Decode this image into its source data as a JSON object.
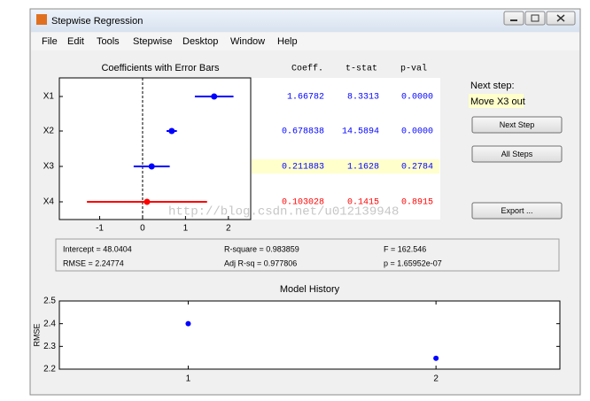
{
  "window": {
    "title": "Stepwise Regression"
  },
  "menu": [
    "File",
    "Edit",
    "Tools",
    "Stepwise",
    "Desktop",
    "Window",
    "Help"
  ],
  "coef_plot": {
    "type": "errorbar",
    "title": "Coefficients with Error Bars",
    "categories": [
      "X1",
      "X2",
      "X3",
      "X4"
    ],
    "values": [
      1.66782,
      0.678838,
      0.211883,
      0.103028
    ],
    "errors": [
      0.45,
      0.12,
      0.42,
      1.4
    ],
    "colors": [
      "#0000ff",
      "#0000ff",
      "#0000ff",
      "#ff0000"
    ],
    "xlim": [
      -1.94,
      2.52
    ],
    "xticks": [
      -1,
      0,
      1,
      2
    ]
  },
  "table": {
    "headers": [
      "Coeff.",
      "t-stat",
      "p-val"
    ],
    "rows": [
      [
        "1.66782",
        "8.3313",
        "0.0000"
      ],
      [
        "0.678838",
        "14.5894",
        "0.0000"
      ],
      [
        "0.211883",
        "1.1628",
        "0.2784"
      ],
      [
        "0.103028",
        "0.1415",
        "0.8915"
      ]
    ],
    "highlight_row": 2
  },
  "next_step": {
    "label": "Next step:",
    "action": "Move X3 out"
  },
  "buttons": [
    "Next Step",
    "All Steps",
    "Export ..."
  ],
  "stats": [
    [
      "Intercept = 48.0404",
      "RMSE = 2.24774"
    ],
    [
      "R-square = 0.983859",
      "Adj R-sq = 0.977806"
    ],
    [
      "F = 162.546",
      "p = 1.65952e-07"
    ]
  ],
  "history": {
    "type": "scatter",
    "title": "Model History",
    "y_label": "RMSE",
    "x": [
      1,
      2
    ],
    "values": [
      2.4,
      2.24774
    ],
    "color": "#0000ff",
    "xlim": [
      0.48,
      2.5
    ],
    "ylim": [
      2.2,
      2.5
    ],
    "xticks": [
      1,
      2
    ],
    "yticks": [
      2.2,
      2.3,
      2.4,
      2.5
    ]
  },
  "watermark": "http://blog.csdn.net/u012139948"
}
